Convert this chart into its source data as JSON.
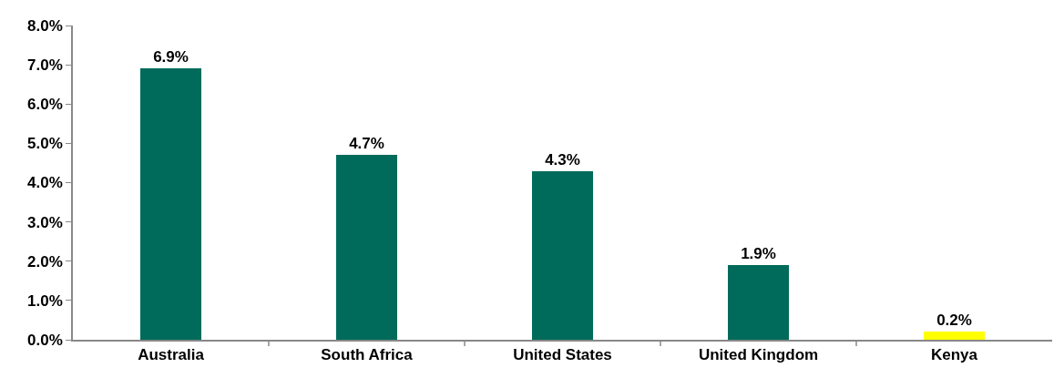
{
  "chart_data": {
    "type": "bar",
    "categories": [
      "Australia",
      "South Africa",
      "United States",
      "United Kingdom",
      "Kenya"
    ],
    "values": [
      6.9,
      4.7,
      4.3,
      1.9,
      0.2
    ],
    "colors": [
      "#006b5a",
      "#006b5a",
      "#006b5a",
      "#006b5a",
      "#ffff00"
    ],
    "value_labels": [
      "6.9%",
      "4.7%",
      "4.3%",
      "1.9%",
      "0.2%"
    ],
    "ylim": [
      0,
      8
    ],
    "yticks": [
      {
        "value": 0,
        "label": "0.0%"
      },
      {
        "value": 1,
        "label": "1.0%"
      },
      {
        "value": 2,
        "label": "2.0%"
      },
      {
        "value": 3,
        "label": "3.0%"
      },
      {
        "value": 4,
        "label": "4.0%"
      },
      {
        "value": 5,
        "label": "5.0%"
      },
      {
        "value": 6,
        "label": "6.0%"
      },
      {
        "value": 7,
        "label": "7.0%"
      },
      {
        "value": 8,
        "label": "8.0%"
      }
    ],
    "grid": false
  }
}
